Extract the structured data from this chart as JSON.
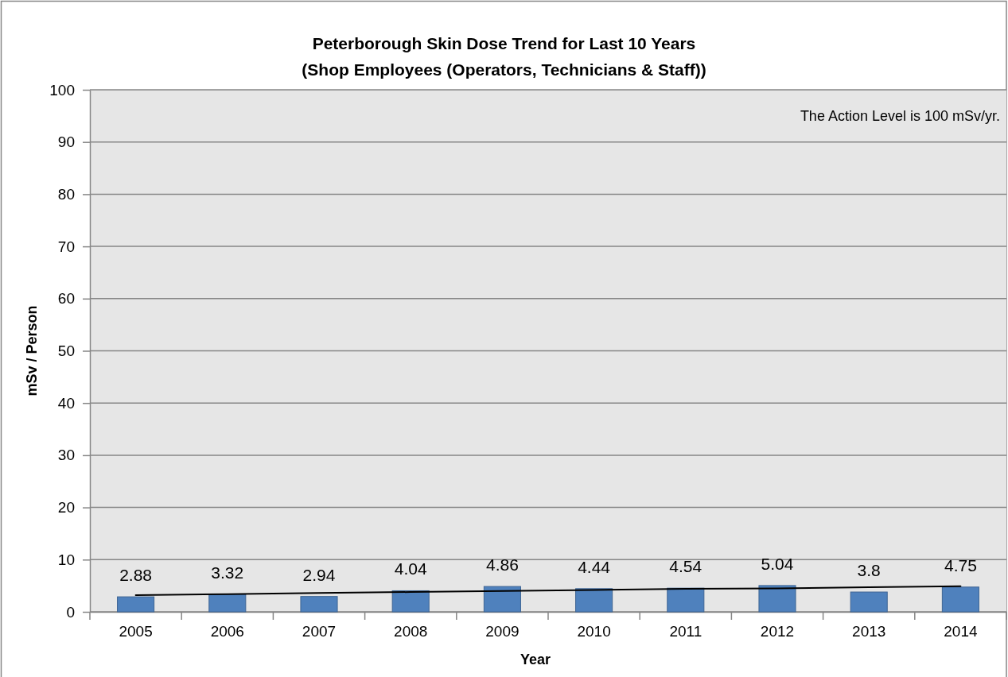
{
  "chart_data": {
    "type": "bar",
    "title": "Peterborough Skin Dose Trend for Last 10 Years",
    "subtitle": "(Shop Employees (Operators, Technicians & Staff))",
    "xlabel": "Year",
    "ylabel": "mSv / Person",
    "categories": [
      "2005",
      "2006",
      "2007",
      "2008",
      "2009",
      "2010",
      "2011",
      "2012",
      "2013",
      "2014"
    ],
    "series": [
      {
        "color": "#4f81bd",
        "values": [
          2.88,
          3.32,
          2.94,
          4.04,
          4.86,
          4.44,
          4.54,
          5.04,
          3.8,
          4.75
        ],
        "value_labels": [
          "2.88",
          "3.32",
          "2.94",
          "4.04",
          "4.86",
          "4.44",
          "4.54",
          "5.04",
          "3.8",
          "4.75"
        ]
      },
      {
        "type": "line",
        "color": "#000000",
        "values": [
          3.2,
          3.4,
          3.6,
          3.8,
          4.0,
          4.2,
          4.4,
          4.5,
          4.7,
          4.9
        ]
      }
    ],
    "ylim": [
      0,
      100
    ],
    "yticks": [
      0,
      10,
      20,
      30,
      40,
      50,
      60,
      70,
      80,
      90,
      100
    ],
    "grid": "y",
    "annotations": [
      "The Action Level is 100 mSv/yr."
    ]
  }
}
